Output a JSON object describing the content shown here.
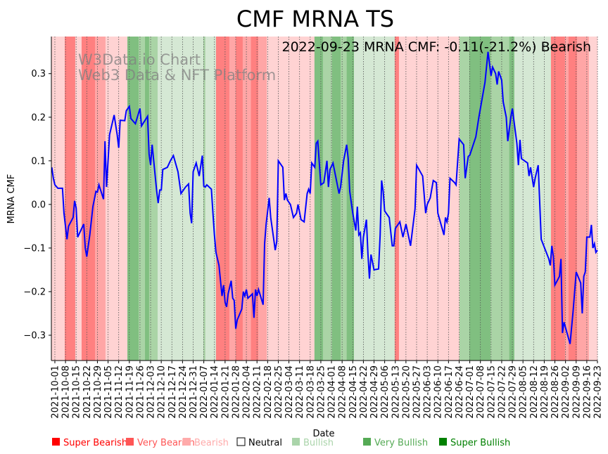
{
  "chart_data": {
    "type": "line",
    "title": "CMF MRNA TS",
    "xlabel": "Date",
    "ylabel": "MRNA CMF",
    "annotation": "2022-09-23 MRNA CMF: -0.11(-21.2%) Bearish",
    "watermark": [
      "W3Data.io Chart",
      "Web3 Data & NFT Platform"
    ],
    "start_date": "2021-10-01",
    "ylim": [
      -0.358,
      0.385
    ],
    "xlim_days": [
      -2.3,
      357
    ],
    "grid": "vertical dotted at x ticks",
    "yticks": [
      -0.3,
      -0.2,
      -0.1,
      0.0,
      0.1,
      0.2,
      0.3
    ],
    "ytick_labels": [
      "−0.3",
      "−0.2",
      "−0.1",
      "0.0",
      "0.1",
      "0.2",
      "0.3"
    ],
    "xtick_labels": [
      "2021-10-01",
      "2021-10-08",
      "2021-10-15",
      "2021-10-22",
      "2021-10-29",
      "2021-11-05",
      "2021-11-12",
      "2021-11-19",
      "2021-11-26",
      "2021-12-03",
      "2021-12-10",
      "2021-12-17",
      "2021-12-24",
      "2021-12-31",
      "2022-01-07",
      "2022-01-14",
      "2022-01-21",
      "2022-01-28",
      "2022-02-04",
      "2022-02-11",
      "2022-02-18",
      "2022-02-25",
      "2022-03-04",
      "2022-03-11",
      "2022-03-18",
      "2022-03-25",
      "2022-04-01",
      "2022-04-08",
      "2022-04-15",
      "2022-04-22",
      "2022-04-29",
      "2022-05-06",
      "2022-05-13",
      "2022-05-20",
      "2022-05-27",
      "2022-06-03",
      "2022-06-10",
      "2022-06-17",
      "2022-06-24",
      "2022-07-01",
      "2022-07-08",
      "2022-07-15",
      "2022-07-22",
      "2022-07-29",
      "2022-08-05",
      "2022-08-12",
      "2022-08-19",
      "2022-08-26",
      "2022-09-02",
      "2022-09-09",
      "2022-09-16",
      "2022-09-23"
    ],
    "series": [
      {
        "name": "MRNA CMF",
        "color": "#0000ff",
        "points": [
          [
            -2,
            0.085
          ],
          [
            -1,
            0.06
          ],
          [
            0,
            0.045
          ],
          [
            2,
            0.037
          ],
          [
            5,
            0.037
          ],
          [
            6,
            -0.02
          ],
          [
            8,
            -0.08
          ],
          [
            9,
            -0.05
          ],
          [
            12,
            -0.03
          ],
          [
            13,
            0.008
          ],
          [
            14,
            -0.008
          ],
          [
            15,
            -0.075
          ],
          [
            17,
            -0.06
          ],
          [
            19,
            -0.045
          ],
          [
            20,
            -0.1
          ],
          [
            21,
            -0.12
          ],
          [
            23,
            -0.07
          ],
          [
            25,
            -0.005
          ],
          [
            27,
            0.03
          ],
          [
            28,
            0.028
          ],
          [
            29,
            0.045
          ],
          [
            32,
            0.012
          ],
          [
            33,
            0.145
          ],
          [
            34,
            0.04
          ],
          [
            36,
            0.16
          ],
          [
            39,
            0.205
          ],
          [
            41,
            0.16
          ],
          [
            42,
            0.13
          ],
          [
            43,
            0.193
          ],
          [
            46,
            0.192
          ],
          [
            47,
            0.215
          ],
          [
            49,
            0.225
          ],
          [
            50,
            0.197
          ],
          [
            53,
            0.185
          ],
          [
            56,
            0.22
          ],
          [
            57,
            0.18
          ],
          [
            61,
            0.202
          ],
          [
            62,
            0.115
          ],
          [
            63,
            0.09
          ],
          [
            64,
            0.137
          ],
          [
            67,
            0.03
          ],
          [
            68,
            0.003
          ],
          [
            69,
            0.033
          ],
          [
            70,
            0.033
          ],
          [
            71,
            0.08
          ],
          [
            74,
            0.085
          ],
          [
            76,
            0.1
          ],
          [
            78,
            0.112
          ],
          [
            81,
            0.075
          ],
          [
            83,
            0.025
          ],
          [
            86,
            0.04
          ],
          [
            88,
            0.047
          ],
          [
            89,
            -0.02
          ],
          [
            90,
            -0.043
          ],
          [
            91,
            0.075
          ],
          [
            93,
            0.095
          ],
          [
            95,
            0.065
          ],
          [
            97,
            0.112
          ],
          [
            98,
            0.042
          ],
          [
            99,
            0.04
          ],
          [
            100,
            0.045
          ],
          [
            103,
            0.035
          ],
          [
            104,
            -0.02
          ],
          [
            105,
            -0.07
          ],
          [
            106,
            -0.11
          ],
          [
            108,
            -0.14
          ],
          [
            110,
            -0.21
          ],
          [
            111,
            -0.185
          ],
          [
            112,
            -0.225
          ],
          [
            113,
            -0.235
          ],
          [
            114,
            -0.205
          ],
          [
            116,
            -0.175
          ],
          [
            117,
            -0.215
          ],
          [
            118,
            -0.22
          ],
          [
            119,
            -0.285
          ],
          [
            120,
            -0.265
          ],
          [
            123,
            -0.24
          ],
          [
            124,
            -0.2
          ],
          [
            125,
            -0.21
          ],
          [
            126,
            -0.195
          ],
          [
            127,
            -0.215
          ],
          [
            130,
            -0.205
          ],
          [
            131,
            -0.26
          ],
          [
            132,
            -0.195
          ],
          [
            133,
            -0.21
          ],
          [
            134,
            -0.195
          ],
          [
            137,
            -0.23
          ],
          [
            138,
            -0.09
          ],
          [
            139,
            -0.045
          ],
          [
            141,
            0.015
          ],
          [
            142,
            -0.03
          ],
          [
            144,
            -0.08
          ],
          [
            145,
            -0.105
          ],
          [
            146,
            -0.085
          ],
          [
            147,
            0.1
          ],
          [
            150,
            0.085
          ],
          [
            151,
            0.01
          ],
          [
            152,
            0.025
          ],
          [
            153,
            0.01
          ],
          [
            155,
            0.0
          ],
          [
            157,
            -0.03
          ],
          [
            159,
            -0.02
          ],
          [
            160,
            0.0
          ],
          [
            162,
            -0.035
          ],
          [
            164,
            -0.04
          ],
          [
            166,
            0.025
          ],
          [
            167,
            0.035
          ],
          [
            168,
            0.025
          ],
          [
            169,
            0.095
          ],
          [
            171,
            0.085
          ],
          [
            172,
            0.14
          ],
          [
            173,
            0.145
          ],
          [
            175,
            0.045
          ],
          [
            177,
            0.05
          ],
          [
            179,
            0.1
          ],
          [
            180,
            0.04
          ],
          [
            181,
            0.08
          ],
          [
            183,
            0.095
          ],
          [
            185,
            0.06
          ],
          [
            187,
            0.025
          ],
          [
            188,
            0.04
          ],
          [
            190,
            0.1
          ],
          [
            192,
            0.137
          ],
          [
            193,
            0.105
          ],
          [
            194,
            0.03
          ],
          [
            196,
            -0.02
          ],
          [
            198,
            -0.06
          ],
          [
            199,
            -0.005
          ],
          [
            200,
            -0.07
          ],
          [
            201,
            -0.065
          ],
          [
            202,
            -0.125
          ],
          [
            203,
            -0.075
          ],
          [
            205,
            -0.035
          ],
          [
            206,
            -0.115
          ],
          [
            207,
            -0.17
          ],
          [
            208,
            -0.115
          ],
          [
            210,
            -0.15
          ],
          [
            213,
            -0.148
          ],
          [
            214,
            -0.07
          ],
          [
            215,
            0.055
          ],
          [
            216,
            0.03
          ],
          [
            217,
            -0.015
          ],
          [
            220,
            -0.03
          ],
          [
            222,
            -0.095
          ],
          [
            223,
            -0.095
          ],
          [
            224,
            -0.055
          ],
          [
            226,
            -0.045
          ],
          [
            227,
            -0.04
          ],
          [
            229,
            -0.075
          ],
          [
            231,
            -0.045
          ],
          [
            234,
            -0.095
          ],
          [
            237,
            -0.01
          ],
          [
            238,
            0.09
          ],
          [
            242,
            0.065
          ],
          [
            244,
            -0.02
          ],
          [
            245,
            0.0
          ],
          [
            247,
            0.015
          ],
          [
            249,
            0.055
          ],
          [
            251,
            0.05
          ],
          [
            252,
            -0.02
          ],
          [
            256,
            -0.07
          ],
          [
            257,
            -0.03
          ],
          [
            258,
            -0.04
          ],
          [
            259,
            -0.02
          ],
          [
            260,
            0.06
          ],
          [
            263,
            0.05
          ],
          [
            264,
            0.045
          ],
          [
            266,
            0.15
          ],
          [
            269,
            0.137
          ],
          [
            270,
            0.06
          ],
          [
            272,
            0.11
          ],
          [
            273,
            0.113
          ],
          [
            277,
            0.155
          ],
          [
            279,
            0.2
          ],
          [
            283,
            0.28
          ],
          [
            285,
            0.35
          ],
          [
            287,
            0.295
          ],
          [
            288,
            0.315
          ],
          [
            290,
            0.3
          ],
          [
            291,
            0.275
          ],
          [
            292,
            0.305
          ],
          [
            294,
            0.285
          ],
          [
            295,
            0.235
          ],
          [
            297,
            0.2
          ],
          [
            298,
            0.145
          ],
          [
            300,
            0.2
          ],
          [
            301,
            0.22
          ],
          [
            304,
            0.14
          ],
          [
            305,
            0.09
          ],
          [
            306,
            0.148
          ],
          [
            307,
            0.105
          ],
          [
            309,
            0.1
          ],
          [
            311,
            0.095
          ],
          [
            312,
            0.065
          ],
          [
            313,
            0.085
          ],
          [
            315,
            0.04
          ],
          [
            316,
            0.06
          ],
          [
            318,
            0.09
          ],
          [
            320,
            -0.08
          ],
          [
            325,
            -0.125
          ],
          [
            326,
            -0.14
          ],
          [
            327,
            -0.095
          ],
          [
            328,
            -0.12
          ],
          [
            329,
            -0.185
          ],
          [
            332,
            -0.165
          ],
          [
            333,
            -0.125
          ],
          [
            334,
            -0.295
          ],
          [
            335,
            -0.27
          ],
          [
            339,
            -0.32
          ],
          [
            341,
            -0.245
          ],
          [
            343,
            -0.155
          ],
          [
            346,
            -0.18
          ],
          [
            347,
            -0.25
          ],
          [
            348,
            -0.165
          ],
          [
            349,
            -0.155
          ],
          [
            350,
            -0.075
          ],
          [
            352,
            -0.075
          ],
          [
            353,
            -0.047
          ],
          [
            354,
            -0.1
          ],
          [
            355,
            -0.09
          ],
          [
            356,
            -0.11
          ],
          [
            357,
            -0.105
          ]
        ]
      }
    ],
    "regimes": [
      [
        -2.3,
        6.5,
        "bearish"
      ],
      [
        6.5,
        13.4,
        "super_bearish"
      ],
      [
        13.4,
        17.6,
        "bearish"
      ],
      [
        17.6,
        26.4,
        "super_bearish"
      ],
      [
        26.4,
        33.3,
        "very_bearish"
      ],
      [
        33.3,
        47.7,
        "bearish"
      ],
      [
        47.7,
        55.1,
        "super_bullish"
      ],
      [
        55.1,
        59.3,
        "very_bullish"
      ],
      [
        59.3,
        62,
        "super_bullish"
      ],
      [
        62,
        67.6,
        "very_bullish"
      ],
      [
        67.6,
        97.7,
        "bullish"
      ],
      [
        97.7,
        99,
        "very_bullish"
      ],
      [
        99,
        106,
        "bullish"
      ],
      [
        106,
        114.8,
        "super_bearish"
      ],
      [
        114.8,
        119,
        "very_bearish"
      ],
      [
        119,
        123.6,
        "super_bearish"
      ],
      [
        123.6,
        129,
        "very_bearish"
      ],
      [
        129,
        133.8,
        "super_bearish"
      ],
      [
        133.8,
        139.4,
        "very_bearish"
      ],
      [
        139.4,
        170.8,
        "bearish"
      ],
      [
        170.8,
        176.4,
        "super_bullish"
      ],
      [
        176.4,
        182.4,
        "very_bullish"
      ],
      [
        182.4,
        188,
        "super_bullish"
      ],
      [
        188,
        192,
        "very_bullish"
      ],
      [
        192,
        196.8,
        "super_bullish"
      ],
      [
        196.8,
        223.6,
        "bullish"
      ],
      [
        223.6,
        226.4,
        "super_bearish"
      ],
      [
        226.4,
        266.2,
        "bearish"
      ],
      [
        266.2,
        272.7,
        "very_bullish"
      ],
      [
        272.7,
        286.6,
        "super_bullish"
      ],
      [
        286.6,
        299,
        "very_bullish"
      ],
      [
        299,
        302.3,
        "super_bullish"
      ],
      [
        302.3,
        326.4,
        "bullish"
      ],
      [
        326.4,
        335.6,
        "super_bearish"
      ],
      [
        335.6,
        338,
        "very_bearish"
      ],
      [
        338,
        343.5,
        "super_bearish"
      ],
      [
        343.5,
        351.4,
        "very_bearish"
      ],
      [
        351.4,
        357,
        "bearish"
      ]
    ],
    "regime_colors": {
      "super_bearish": "#ff8080",
      "very_bearish": "#ffa6a6",
      "bearish": "#ffd3d3",
      "neutral": "#ffffff",
      "bullish": "#d5e8d4",
      "very_bullish": "#aad4a6",
      "super_bullish": "#80bf80"
    },
    "legend": {
      "placement": "bottom",
      "items": [
        {
          "label": "Super Bearish",
          "color": "#ff0000",
          "text_color": "#ff0000"
        },
        {
          "label": "Very Bearish",
          "color": "#ff5555",
          "text_color": "#ff5555"
        },
        {
          "label": "Bearish",
          "color": "#ffaaaa",
          "text_color": "#ffaaaa"
        },
        {
          "label": "Neutral",
          "color": "#ffffff",
          "text_color": "#000000"
        },
        {
          "label": "Bullish",
          "color": "#aad4aa",
          "text_color": "#aad4aa"
        },
        {
          "label": "Very Bullish",
          "color": "#55aa55",
          "text_color": "#55aa55"
        },
        {
          "label": "Super Bullish",
          "color": "#008000",
          "text_color": "#008000"
        }
      ]
    }
  }
}
